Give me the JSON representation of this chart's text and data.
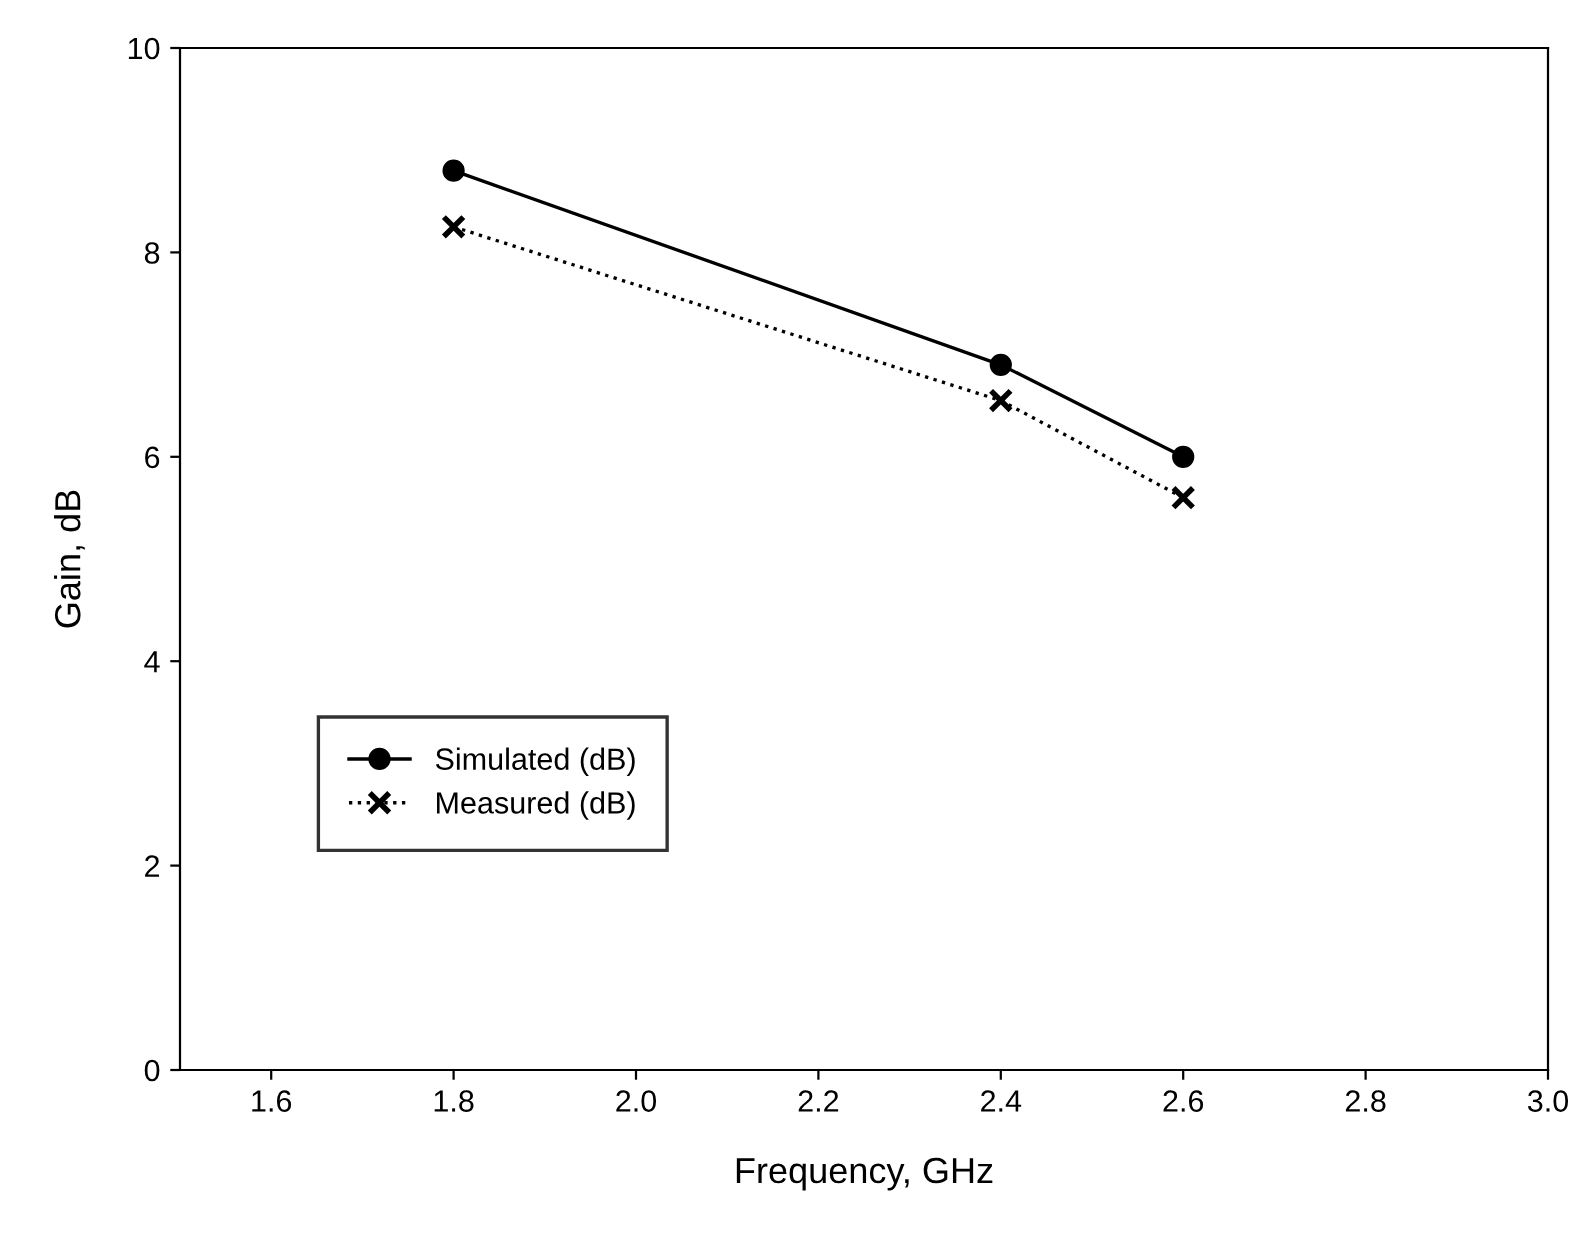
{
  "chart_data": {
    "type": "line",
    "xlabel": "Frequency, GHz",
    "ylabel": "Gain, dB",
    "x": [
      1.8,
      2.4,
      2.6
    ],
    "series": [
      {
        "name": "Simulated (dB)",
        "color": "#000000",
        "values": [
          8.8,
          6.9,
          6.0
        ],
        "marker": "circle",
        "line_style": "solid"
      },
      {
        "name": "Measured (dB)",
        "color": "#000000",
        "values": [
          8.25,
          6.55,
          5.6
        ],
        "marker": "cross",
        "line_style": "dotted"
      }
    ],
    "xlim": [
      1.5,
      3.0
    ],
    "xticks": [
      {
        "value": 1.6,
        "label": "1.6"
      },
      {
        "value": 1.8,
        "label": "1.8"
      },
      {
        "value": 2.0,
        "label": "2.0"
      },
      {
        "value": 2.2,
        "label": "2.2"
      },
      {
        "value": 2.4,
        "label": "2.4"
      },
      {
        "value": 2.6,
        "label": "2.6"
      },
      {
        "value": 2.8,
        "label": "2.8"
      },
      {
        "value": 3.0,
        "label": "3.0"
      }
    ],
    "ylim": [
      0,
      10
    ],
    "yticks": [
      0,
      2,
      4,
      6,
      8,
      10
    ],
    "grid": false,
    "legend": "bottom left"
  }
}
